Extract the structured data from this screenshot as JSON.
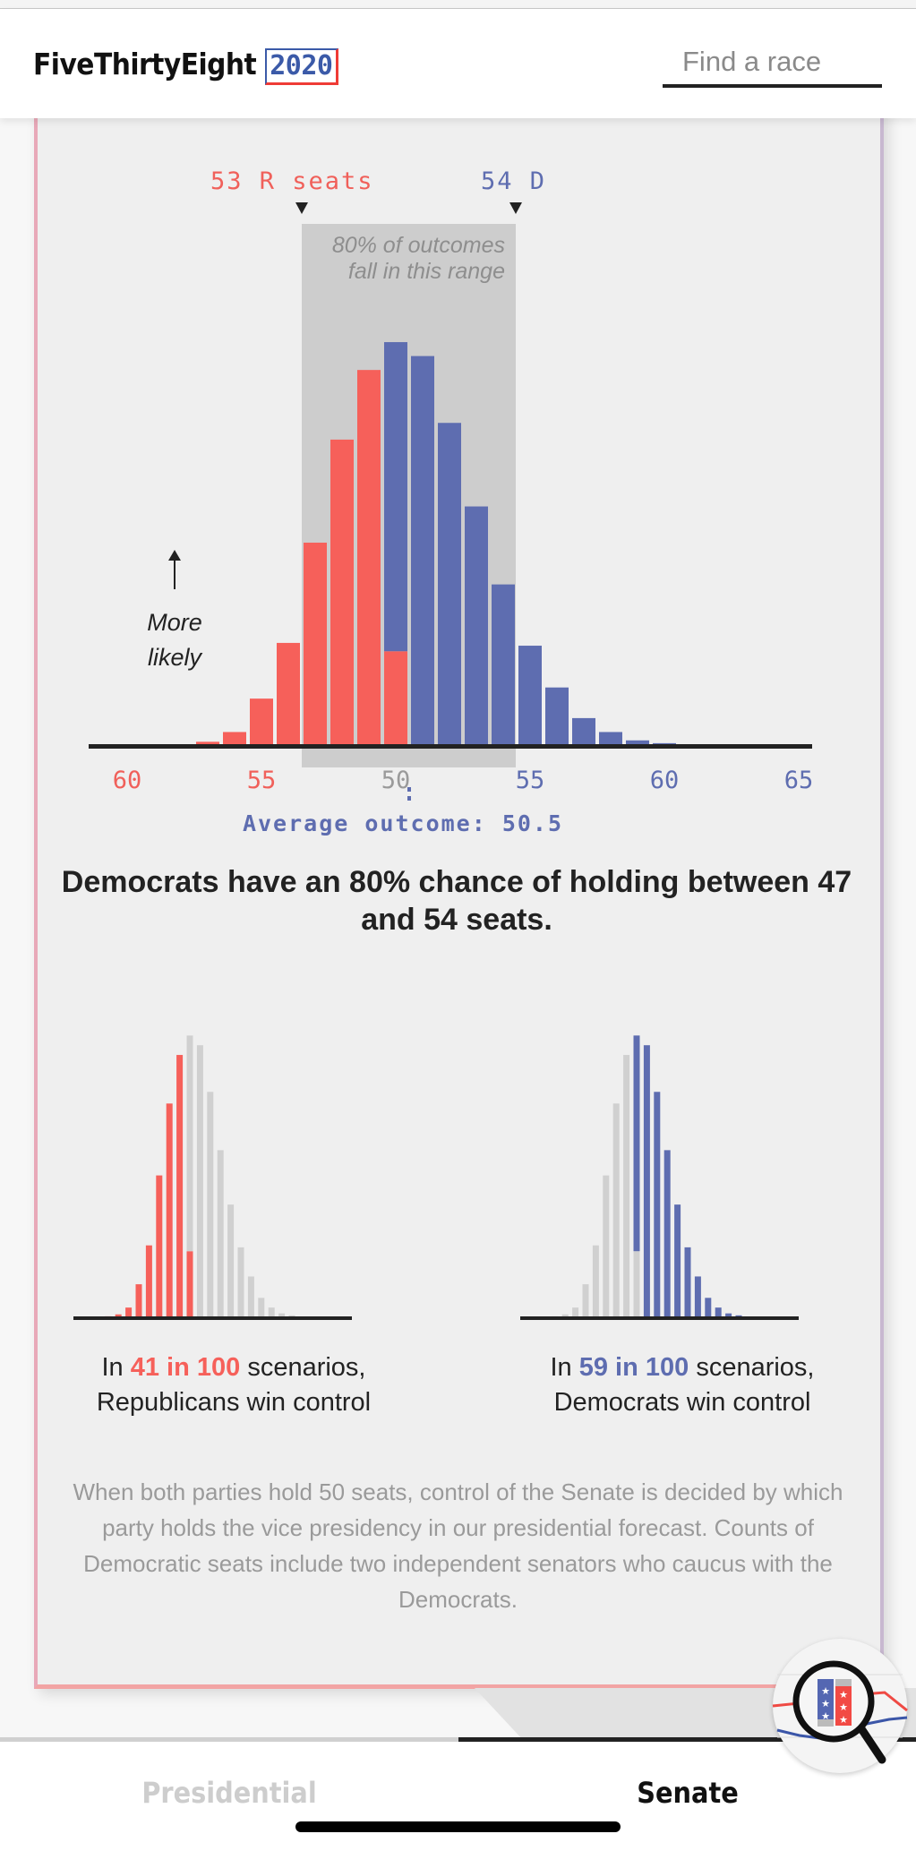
{
  "header": {
    "logo_text": "FiveThirtyEight",
    "logo_year": "2020",
    "search_placeholder": "Find a race"
  },
  "main_chart": {
    "range_r_label": "53 R seats",
    "range_d_label": "54 D",
    "range_note": "80% of outcomes fall in this range",
    "more_likely": "More likely",
    "average_label": "Average outcome: 50.5"
  },
  "headline": "Democrats have an 80% chance of holding between 47 and 54 seats.",
  "scenarios": {
    "r": {
      "pre": "In ",
      "highlight": "41 in 100",
      "post": " scenarios,",
      "line2": "Republicans win control"
    },
    "d": {
      "pre": "In ",
      "highlight": "59 in 100",
      "post": " scenarios,",
      "line2": "Democrats win control"
    }
  },
  "footnote": "When both parties hold 50 seats, control of the Senate is decided by which party holds the vice presidency in our presidential forecast. Counts of Democratic seats include two independent senators who caucus with the Democrats.",
  "tabs": {
    "presidential": "Presidential",
    "senate": "Senate"
  },
  "colors": {
    "republican": "#f6605a",
    "democrat": "#5e6db0",
    "range": "#cdcdcd",
    "inactive_bar": "#d0d0d0"
  },
  "chart_data": {
    "type": "bar",
    "xlabel": "",
    "ylabel": "",
    "x_unit": "Democratic seats (Republican seats on left side of axis)",
    "x": [
      42,
      43,
      44,
      45,
      46,
      47,
      48,
      49,
      50,
      51,
      52,
      53,
      54,
      55,
      56,
      57,
      58,
      59,
      60
    ],
    "values": [
      0.05,
      0.15,
      0.5,
      1.7,
      3.7,
      7.3,
      11.0,
      13.5,
      14.5,
      14.0,
      11.6,
      8.6,
      5.8,
      3.6,
      2.1,
      1.0,
      0.5,
      0.2,
      0.1
    ],
    "tie_split": {
      "republican_control": 3.4,
      "democratic_control": 11.1
    },
    "tick_labels": [
      {
        "seat": 40,
        "label": "60",
        "party": "R"
      },
      {
        "seat": 45,
        "label": "55",
        "party": "R"
      },
      {
        "seat": 50,
        "label": "50",
        "party": "tie"
      },
      {
        "seat": 55,
        "label": "55",
        "party": "D"
      },
      {
        "seat": 60,
        "label": "60",
        "party": "D"
      },
      {
        "seat": 65,
        "label": "65",
        "party": "D"
      }
    ],
    "range_80": [
      47,
      54
    ],
    "average": 50.5,
    "xlim": [
      39.5,
      65.5
    ],
    "grid": false
  }
}
